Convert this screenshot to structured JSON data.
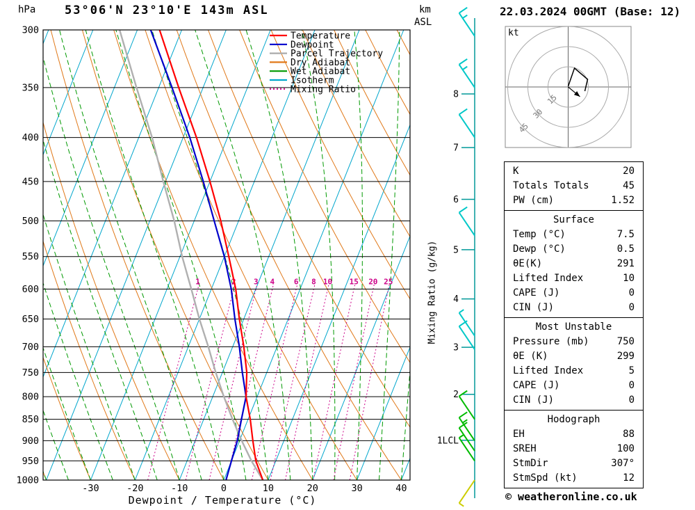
{
  "header": {
    "station": "53°06'N 23°10'E 143m ASL",
    "datetime": "22.03.2024 00GMT (Base: 12)",
    "pressure_unit": "hPa",
    "km_unit": "km",
    "asl_unit": "ASL"
  },
  "legend": {
    "items": [
      {
        "label": "Temperature",
        "color": "#ff0000",
        "dash": ""
      },
      {
        "label": "Dewpoint",
        "color": "#0000cc",
        "dash": ""
      },
      {
        "label": "Parcel Trajectory",
        "color": "#aaaaaa",
        "dash": ""
      },
      {
        "label": "Dry Adiabat",
        "color": "#e07818",
        "dash": ""
      },
      {
        "label": "Wet Adiabat",
        "color": "#009900",
        "dash": ""
      },
      {
        "label": "Isotherm",
        "color": "#00a6cc",
        "dash": ""
      },
      {
        "label": "Mixing Ratio",
        "color": "#cc0088",
        "dash": "2,3"
      }
    ]
  },
  "axes": {
    "xlabel": "Dewpoint / Temperature (°C)",
    "mixing_ratio_axis_label": "Mixing Ratio (g/kg)",
    "pressure_ticks": [
      300,
      350,
      400,
      450,
      500,
      550,
      600,
      650,
      700,
      750,
      800,
      850,
      900,
      950,
      1000
    ],
    "temp_ticks": [
      -30,
      -20,
      -10,
      0,
      10,
      20,
      30,
      40
    ],
    "km_ticks": [
      {
        "label": "8",
        "p": 356
      },
      {
        "label": "7",
        "p": 411
      },
      {
        "label": "6",
        "p": 472
      },
      {
        "label": "5",
        "p": 540
      },
      {
        "label": "4",
        "p": 616
      },
      {
        "label": "3",
        "p": 701
      },
      {
        "label": "2",
        "p": 795
      },
      {
        "label": "1LCL",
        "p": 899
      }
    ]
  },
  "chart_data": {
    "type": "line",
    "projection": "skew-t-log-p",
    "pressure_range": [
      300,
      1000
    ],
    "temp_axis_range": [
      -40,
      45
    ],
    "background": {
      "isotherms": {
        "min": -90,
        "max": 50,
        "step": 10,
        "color": "#00a6cc"
      },
      "dry_adiabats": {
        "min": -40,
        "max": 230,
        "step": 10,
        "color": "#e07818"
      },
      "wet_adiabats": {
        "min": -60,
        "max": 40,
        "step": 5,
        "color": "#009900"
      },
      "mixing_ratio": {
        "values": [
          1,
          2,
          3,
          4,
          6,
          8,
          10,
          15,
          20,
          25
        ],
        "color": "#cc0088",
        "label_pressure": 600,
        "top_pressure": 588
      }
    },
    "series": [
      {
        "name": "Temperature",
        "color": "#ff0000",
        "width": 2.2,
        "points": [
          [
            1000,
            8.8
          ],
          [
            950,
            5.5
          ],
          [
            900,
            3
          ],
          [
            850,
            0.5
          ],
          [
            800,
            -2.5
          ],
          [
            750,
            -4.5
          ],
          [
            700,
            -7.5
          ],
          [
            650,
            -11
          ],
          [
            600,
            -14.5
          ],
          [
            550,
            -19
          ],
          [
            500,
            -24
          ],
          [
            450,
            -30
          ],
          [
            400,
            -37
          ],
          [
            350,
            -45.5
          ],
          [
            300,
            -55
          ]
        ]
      },
      {
        "name": "Dewpoint",
        "color": "#0000cc",
        "width": 2.2,
        "points": [
          [
            1000,
            0.5
          ],
          [
            950,
            0
          ],
          [
            900,
            -0.5
          ],
          [
            850,
            -1.5
          ],
          [
            800,
            -2.5
          ],
          [
            750,
            -5.5
          ],
          [
            700,
            -8.5
          ],
          [
            650,
            -12
          ],
          [
            600,
            -15.5
          ],
          [
            550,
            -20
          ],
          [
            500,
            -25.5
          ],
          [
            450,
            -31.5
          ],
          [
            400,
            -38.5
          ],
          [
            350,
            -47
          ],
          [
            300,
            -57
          ]
        ]
      },
      {
        "name": "Parcel Trajectory",
        "color": "#b0b0b0",
        "width": 2.4,
        "points": [
          [
            1000,
            8.8
          ],
          [
            950,
            4.5
          ],
          [
            900,
            0.5
          ],
          [
            850,
            -3.5
          ],
          [
            800,
            -7.5
          ],
          [
            750,
            -11.5
          ],
          [
            700,
            -15.5
          ],
          [
            650,
            -20
          ],
          [
            600,
            -24.5
          ],
          [
            550,
            -29.5
          ],
          [
            500,
            -34.5
          ],
          [
            450,
            -40.5
          ],
          [
            400,
            -47
          ],
          [
            350,
            -55
          ],
          [
            300,
            -64
          ]
        ]
      }
    ]
  },
  "wind_barbs": [
    {
      "p": 305,
      "color": "#00c8c8",
      "ticks": "fh",
      "dir": "up"
    },
    {
      "p": 350,
      "color": "#00c8c8",
      "ticks": "fh",
      "dir": "up"
    },
    {
      "p": 400,
      "color": "#00c8c8",
      "ticks": "f",
      "dir": "up"
    },
    {
      "p": 520,
      "color": "#00c8c8",
      "ticks": "f",
      "dir": "up"
    },
    {
      "p": 680,
      "color": "#00c8c8",
      "ticks": "h",
      "dir": "up"
    },
    {
      "p": 705,
      "color": "#00c8c8",
      "ticks": "f",
      "dir": "up"
    },
    {
      "p": 850,
      "color": "#00bb00",
      "ticks": "f",
      "dir": "up"
    },
    {
      "p": 900,
      "color": "#00bb00",
      "ticks": "fh",
      "dir": "up"
    },
    {
      "p": 925,
      "color": "#00bb00",
      "ticks": "f",
      "dir": "up"
    },
    {
      "p": 950,
      "color": "#00bb00",
      "ticks": "h",
      "dir": "up"
    },
    {
      "p": 1000,
      "color": "#cccc00",
      "ticks": "h",
      "dir": "down"
    }
  ],
  "hodograph": {
    "unit_label": "kt",
    "rings": [
      15,
      30,
      45
    ],
    "trace_kt": [
      [
        0,
        0.5
      ],
      [
        4.7,
        14
      ],
      [
        14.5,
        5.7
      ],
      [
        12.4,
        -3.1
      ]
    ],
    "storm_motion_kt": [
      8.8,
      -7.2
    ]
  },
  "tables": [
    {
      "rows": [
        [
          "K",
          "20"
        ],
        [
          "Totals Totals",
          "45"
        ],
        [
          "PW (cm)",
          "1.52"
        ]
      ]
    },
    {
      "title": "Surface",
      "rows": [
        [
          "Temp (°C)",
          "7.5"
        ],
        [
          "Dewp (°C)",
          "0.5"
        ],
        [
          "θE(K)",
          "291"
        ],
        [
          "Lifted Index",
          "10"
        ],
        [
          "CAPE (J)",
          "0"
        ],
        [
          "CIN (J)",
          "0"
        ]
      ]
    },
    {
      "title": "Most Unstable",
      "rows": [
        [
          "Pressure (mb)",
          "750"
        ],
        [
          "θE (K)",
          "299"
        ],
        [
          "Lifted Index",
          "5"
        ],
        [
          "CAPE (J)",
          "0"
        ],
        [
          "CIN (J)",
          "0"
        ]
      ]
    },
    {
      "title": "Hodograph",
      "rows": [
        [
          "EH",
          "88"
        ],
        [
          "SREH",
          "100"
        ],
        [
          "StmDir",
          "307°"
        ],
        [
          "StmSpd (kt)",
          "12"
        ]
      ]
    }
  ],
  "copyright": "© weatheronline.co.uk"
}
